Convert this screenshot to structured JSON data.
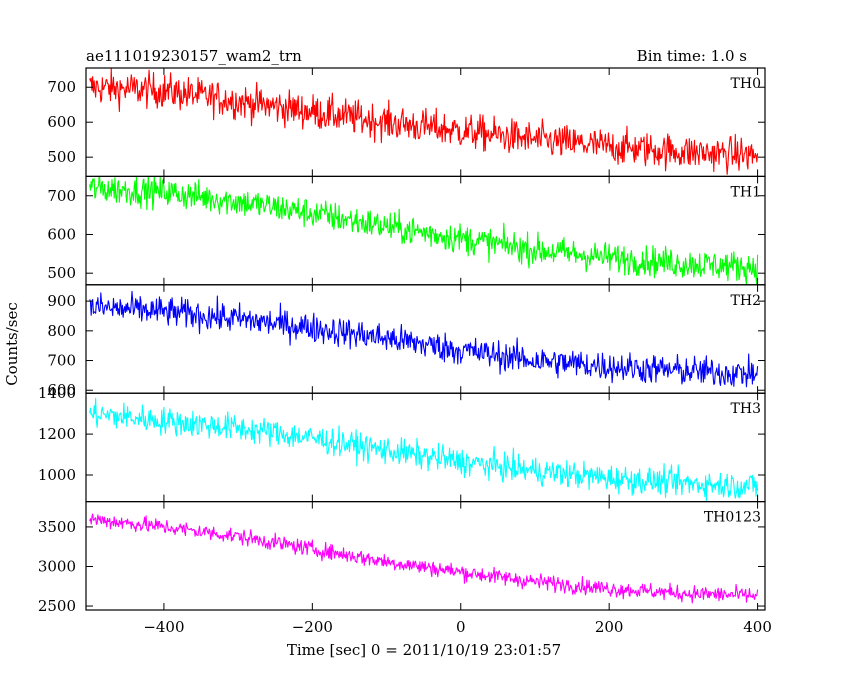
{
  "chart_data": {
    "type": "line",
    "title": "ae111019230157_wam2_trn",
    "subtitle": "Bin time: 1.0 s",
    "xlabel": "Time [sec] 0 = 2011/10/19 23:01:57",
    "ylabel": "Counts/sec",
    "xlim": [
      -505,
      410
    ],
    "x_ticks": [
      -400,
      -200,
      0,
      200,
      400
    ],
    "x_tick_labels": [
      "−400",
      "−200",
      "0",
      "200",
      "400"
    ],
    "grid": false,
    "x_start": -500,
    "x_end": 400,
    "bin": 1.0,
    "series": [
      {
        "name": "TH0",
        "color": "#ff0000",
        "ylim": [
          445,
          755
        ],
        "y_ticks": [
          500,
          600,
          700
        ],
        "y_tick_labels": [
          "500",
          "600",
          "700"
        ],
        "trend_x": [
          -500,
          -400,
          -300,
          -200,
          -100,
          0,
          100,
          200,
          300,
          400
        ],
        "trend_y": [
          700,
          690,
          660,
          630,
          600,
          575,
          550,
          530,
          515,
          505
        ],
        "noise": 45
      },
      {
        "name": "TH1",
        "color": "#00ff00",
        "ylim": [
          470,
          750
        ],
        "y_ticks": [
          500,
          600,
          700
        ],
        "y_tick_labels": [
          "500",
          "600",
          "700"
        ],
        "trend_x": [
          -500,
          -400,
          -300,
          -200,
          -100,
          0,
          100,
          200,
          300,
          400
        ],
        "trend_y": [
          720,
          710,
          685,
          655,
          620,
          590,
          560,
          540,
          525,
          515
        ],
        "noise": 35
      },
      {
        "name": "TH2",
        "color": "#0000ff",
        "ylim": [
          590,
          955
        ],
        "y_ticks": [
          600,
          700,
          800,
          900
        ],
        "y_tick_labels": [
          "600",
          "700",
          "800",
          "900"
        ],
        "trend_x": [
          -500,
          -400,
          -300,
          -200,
          -100,
          0,
          100,
          200,
          300,
          400
        ],
        "trend_y": [
          880,
          865,
          840,
          810,
          775,
          735,
          700,
          680,
          665,
          655
        ],
        "noise": 45
      },
      {
        "name": "TH3",
        "color": "#00ffff",
        "ylim": [
          870,
          1400
        ],
        "y_ticks": [
          1000,
          1200,
          1400
        ],
        "y_tick_labels": [
          "1000",
          "1200",
          "1400"
        ],
        "trend_x": [
          -500,
          -400,
          -300,
          -200,
          -100,
          0,
          100,
          200,
          300,
          400
        ],
        "trend_y": [
          1300,
          1265,
          1230,
          1180,
          1120,
          1065,
          1020,
          985,
          960,
          945
        ],
        "noise": 60
      },
      {
        "name": "TH0123",
        "color": "#ff00ff",
        "ylim": [
          2450,
          3820
        ],
        "y_ticks": [
          2500,
          3000,
          3500
        ],
        "y_tick_labels": [
          "2500",
          "3000",
          "3500"
        ],
        "trend_x": [
          -500,
          -400,
          -300,
          -200,
          -100,
          0,
          100,
          200,
          300,
          400
        ],
        "trend_y": [
          3600,
          3500,
          3380,
          3220,
          3060,
          2930,
          2810,
          2720,
          2660,
          2630
        ],
        "noise": 90
      }
    ]
  }
}
